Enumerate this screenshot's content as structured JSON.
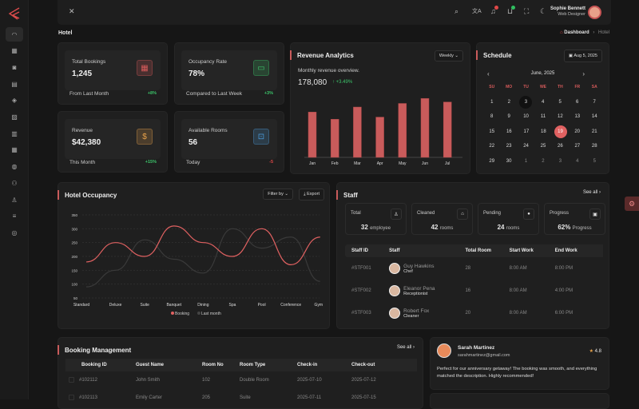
{
  "header": {
    "user_name": "Sophie Bennett",
    "user_role": "Web Designer",
    "icons": [
      "close-icon",
      "search-icon",
      "translate-icon",
      "bell-icon",
      "cart-icon",
      "fullscreen-icon",
      "moon-icon"
    ],
    "badge_colors": {
      "bell": "#e04848",
      "cart": "#2fbf5f"
    }
  },
  "page": {
    "title": "Hotel",
    "breadcrumb": [
      "Dashboard",
      "Hotel"
    ]
  },
  "sidebar": {
    "icons": [
      "dashboard-icon",
      "apps-icon",
      "contacts-icon",
      "book-icon",
      "layers-icon",
      "image-icon",
      "document-icon",
      "table-icon",
      "globe-icon",
      "users-icon",
      "user-icon",
      "list-icon",
      "settings-icon"
    ]
  },
  "stats": [
    {
      "label": "Total Bookings",
      "value": "1,245",
      "note": "From Last Month",
      "change": "+8%",
      "change_color": "#3cc46a",
      "icon": "calendar-icon",
      "color": "#d85b5b"
    },
    {
      "label": "Occupancy Rate",
      "value": "78%",
      "note": "Compared to Last Week",
      "change": "+3%",
      "change_color": "#3cc46a",
      "icon": "bed-icon",
      "color": "#3cc46a"
    },
    {
      "label": "Revenue",
      "value": "$42,380",
      "note": "This Month",
      "change": "+15%",
      "change_color": "#3cc46a",
      "icon": "dollar-icon",
      "color": "#e8a24a"
    },
    {
      "label": "Available Rooms",
      "value": "56",
      "note": "Today",
      "change": "-5",
      "change_color": "#e04848",
      "icon": "unlock-icon",
      "color": "#4a9ad8"
    }
  ],
  "revenue": {
    "title": "Revenue Analytics",
    "period": "Weekly",
    "subtitle": "Monthly revenue overview.",
    "total": "178,080",
    "change": "+3.49%"
  },
  "chart_data": [
    {
      "type": "bar",
      "title": "Revenue Analytics",
      "categories": [
        "Jan",
        "Feb",
        "Mar",
        "Apr",
        "May",
        "Jun",
        "Jul"
      ],
      "values": [
        63,
        53,
        70,
        56,
        75,
        82,
        77
      ],
      "color": "#c95b5b",
      "grid": false
    },
    {
      "type": "line",
      "title": "Hotel Occupancy",
      "categories": [
        "Standard",
        "Deluxe",
        "Suite",
        "Banquet",
        "Dining",
        "Spa",
        "Pool",
        "Conference",
        "Gym"
      ],
      "yticks": [
        50,
        100,
        150,
        200,
        250,
        300,
        350
      ],
      "ylim": [
        50,
        350
      ],
      "grid": true,
      "legend": "bottom",
      "series": [
        {
          "name": "Booking",
          "values": [
            180,
            250,
            200,
            310,
            250,
            200,
            300,
            170,
            270
          ],
          "color": "#e06161"
        },
        {
          "name": "Last month",
          "values": [
            90,
            150,
            260,
            190,
            140,
            300,
            230,
            270,
            110
          ],
          "color": "#3a3a3a"
        }
      ]
    }
  ],
  "occupancy": {
    "title": "Hotel Occupancy",
    "filter": "Filter by",
    "export": "Export"
  },
  "schedule": {
    "title": "Schedule",
    "date": "Aug 5, 2025",
    "month": "June, 2025",
    "days": [
      "SU",
      "MO",
      "TU",
      "WE",
      "TH",
      "FR",
      "SA"
    ],
    "weeks": [
      [
        "1",
        "2",
        "3",
        "4",
        "5",
        "6",
        "7"
      ],
      [
        "8",
        "9",
        "10",
        "11",
        "12",
        "13",
        "14"
      ],
      [
        "15",
        "16",
        "17",
        "18",
        "19",
        "20",
        "21"
      ],
      [
        "22",
        "23",
        "24",
        "25",
        "26",
        "27",
        "28"
      ],
      [
        "29",
        "30",
        "1",
        "2",
        "3",
        "4",
        "5"
      ]
    ],
    "selected": "19",
    "today": "3",
    "accent": "#e06161"
  },
  "staff": {
    "title": "Staff",
    "see_all": "See all",
    "summary": [
      {
        "label": "Total",
        "num": "32",
        "unit": "employee",
        "icon": "user-icon"
      },
      {
        "label": "Cleaned",
        "num": "42",
        "unit": "rooms",
        "icon": "home-icon"
      },
      {
        "label": "Pending",
        "num": "24",
        "unit": "rooms",
        "icon": "clock-icon"
      },
      {
        "label": "Progress",
        "num": "62%",
        "unit": "Progress",
        "icon": "chart-icon"
      }
    ],
    "columns": [
      "Staff ID",
      "Staff",
      "Total Room",
      "Start Work",
      "End Work"
    ],
    "rows": [
      [
        "#STF001",
        "Guy Hawkins",
        "Chef",
        "28",
        "8:00 AM",
        "8:00 PM"
      ],
      [
        "#STF002",
        "Eleanor Pena",
        "Receptionist",
        "16",
        "8:00 AM",
        "4:00 PM"
      ],
      [
        "#STF003",
        "Robert Fox",
        "Cleaner",
        "20",
        "8:00 AM",
        "6:00 PM"
      ]
    ]
  },
  "bookings": {
    "title": "Booking Management",
    "see_all": "See all",
    "columns": [
      "Booking ID",
      "Guest Name",
      "Room No",
      "Room Type",
      "Check-in",
      "Check-out"
    ],
    "rows": [
      [
        "#102112",
        "John Smith",
        "102",
        "Double Room",
        "2025-07-10",
        "2025-07-12"
      ],
      [
        "#102113",
        "Emily Carter",
        "205",
        "Suite",
        "2025-07-11",
        "2025-07-15"
      ]
    ]
  },
  "review": {
    "name": "Sarah Martinez",
    "email": "sarahmartinez@gmail.com",
    "rating": "4.8",
    "text": "Perfect for our anniversary getaway! The booking was smooth, and everything matched the description. Highly recommended!"
  }
}
